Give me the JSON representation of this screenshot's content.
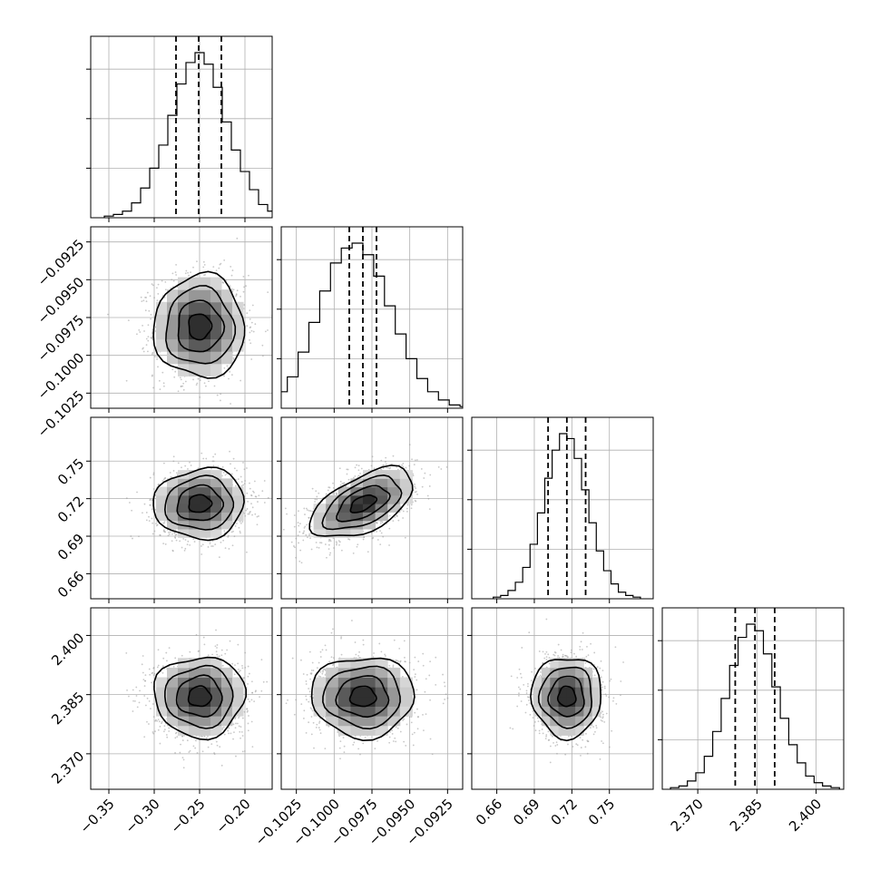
{
  "chart_data": {
    "type": "corner",
    "parameters": [
      {
        "mean": -0.25,
        "sd": 0.025,
        "xlim": [
          -0.37,
          -0.17
        ],
        "quantiles": [
          -0.276,
          -0.251,
          -0.226
        ],
        "ticks": [
          -0.35,
          -0.3,
          -0.25,
          -0.2
        ],
        "tick_labels": [
          "−0.35",
          "−0.30",
          "−0.25",
          "−0.20"
        ]
      },
      {
        "mean": -0.0981,
        "sd": 0.0017,
        "xlim": [
          -0.1035,
          -0.0915
        ],
        "quantiles": [
          -0.099,
          -0.0981,
          -0.0972
        ],
        "ticks": [
          -0.1025,
          -0.1,
          -0.0975,
          -0.095,
          -0.0925
        ],
        "tick_labels": [
          "−0.1025",
          "−0.1000",
          "−0.0975",
          "−0.0950",
          "−0.0925"
        ]
      },
      {
        "mean": 0.716,
        "sd": 0.014,
        "xlim": [
          0.64,
          0.785
        ],
        "quantiles": [
          0.701,
          0.716,
          0.731
        ],
        "ticks": [
          0.66,
          0.69,
          0.72,
          0.75
        ],
        "tick_labels": [
          "0.66",
          "0.69",
          "0.72",
          "0.75"
        ]
      },
      {
        "mean": 2.3845,
        "sd": 0.0051,
        "xlim": [
          2.361,
          2.407
        ],
        "quantiles": [
          2.3795,
          2.3845,
          2.3895
        ],
        "ticks": [
          2.37,
          2.385,
          2.4
        ],
        "tick_labels": [
          "2.370",
          "2.385",
          "2.400"
        ]
      }
    ],
    "correlations": [
      [
        1,
        0.0,
        0.05,
        0.0
      ],
      [
        0.0,
        1,
        0.55,
        0.0
      ],
      [
        0.05,
        0.55,
        1,
        0.0
      ],
      [
        0.0,
        0.0,
        0.0,
        1
      ]
    ],
    "histograms": [
      [
        0.01,
        0.02,
        0.04,
        0.09,
        0.18,
        0.3,
        0.44,
        0.62,
        0.81,
        0.94,
        1.0,
        0.93,
        0.79,
        0.58,
        0.41,
        0.28,
        0.17,
        0.08,
        0.04,
        0.02,
        0.01
      ],
      [
        0.02,
        0.05,
        0.1,
        0.19,
        0.34,
        0.52,
        0.71,
        0.88,
        0.97,
        1.0,
        0.93,
        0.8,
        0.62,
        0.45,
        0.3,
        0.18,
        0.1,
        0.05,
        0.02,
        0.01
      ],
      [
        0.01,
        0.02,
        0.05,
        0.1,
        0.19,
        0.33,
        0.52,
        0.73,
        0.9,
        1.0,
        0.97,
        0.85,
        0.66,
        0.46,
        0.29,
        0.17,
        0.09,
        0.04,
        0.02,
        0.01
      ],
      [
        0.01,
        0.02,
        0.05,
        0.1,
        0.2,
        0.35,
        0.55,
        0.75,
        0.92,
        1.0,
        0.96,
        0.82,
        0.62,
        0.43,
        0.27,
        0.16,
        0.08,
        0.04,
        0.02,
        0.01
      ]
    ],
    "contour_levels_sigma": [
      0.5,
      1.0,
      1.5,
      2.0
    ],
    "grid": true,
    "title": "",
    "xlabel": "",
    "ylabel": ""
  }
}
